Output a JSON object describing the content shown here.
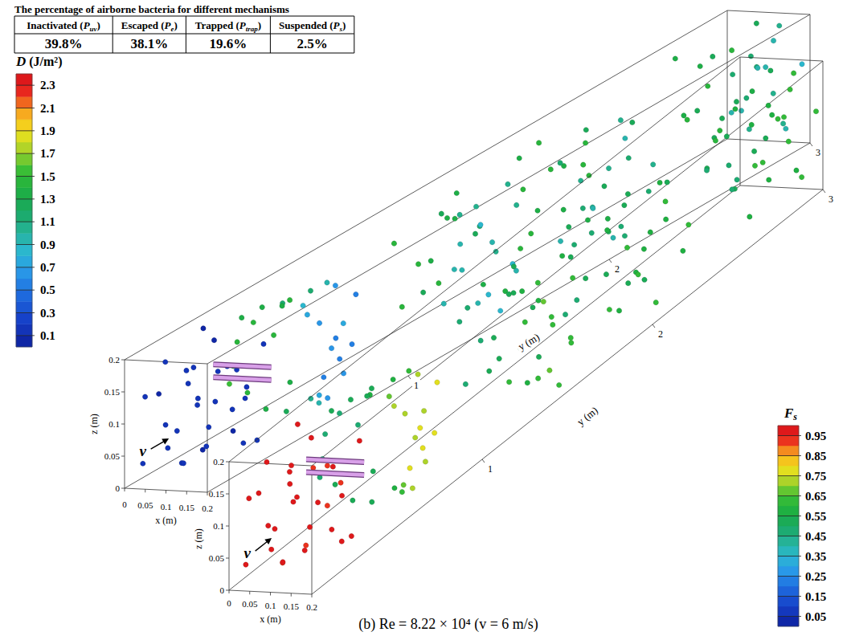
{
  "title": "The percentage of airborne bacteria for different mechanisms",
  "table": {
    "columns": [
      {
        "before": "Inactivated (",
        "symbol": "P",
        "subscript": "uv",
        "after": ")"
      },
      {
        "before": "Escaped (",
        "symbol": "P",
        "subscript": "e",
        "after": ")"
      },
      {
        "before": "Trapped (",
        "symbol": "P",
        "subscript": "trap",
        "after": ")"
      },
      {
        "before": "Suspended (",
        "symbol": "P",
        "subscript": "s",
        "after": ")"
      }
    ],
    "values": [
      39.8,
      38.1,
      19.6,
      2.5
    ],
    "value_labels": [
      "39.8%",
      "38.1%",
      "19.6%",
      "2.5%"
    ]
  },
  "caption": "(b) Re = 8.22 × 10⁴ (v = 6 m/s)",
  "lamps": [
    {
      "x": [
        0.03,
        0.17
      ],
      "y": 0.38,
      "z": 0.125
    },
    {
      "x": [
        0.03,
        0.17
      ],
      "y": 0.38,
      "z": 0.105
    }
  ],
  "particles": {
    "x": [
      0.02,
      0.08,
      0.15,
      0.19,
      0.04,
      0.11,
      0.17,
      0.01,
      0.06,
      0.13,
      0.18,
      0.03,
      0.09,
      0.14,
      0.07,
      0.12,
      0.16,
      0.05,
      0.1,
      0.19,
      0.02,
      0.08,
      0.15,
      0.11,
      0.04,
      0.17,
      0.13,
      0.06,
      0.2,
      0.09,
      0.02,
      0.03,
      0.02,
      0.05,
      0.06,
      0.04,
      0.08,
      0.09,
      0.11,
      0.12,
      0.1,
      0.14,
      0.15,
      0.17,
      0.18,
      0.19,
      0.17,
      0.19,
      0.16,
      0.18,
      0.2,
      0.15,
      0.03,
      0.01,
      0.07,
      0.06,
      0.13,
      0.13,
      0.19,
      0.17,
      0.04,
      0.16,
      0.18,
      0.16,
      0.19,
      0.14,
      0.17,
      0.2,
      0.15,
      0.12,
      0.18,
      0.13,
      0.1,
      0.08,
      0.06,
      0.03,
      0.05,
      0.09,
      0.02,
      0.11,
      0.16,
      0.19,
      0.14,
      0.17,
      0.07,
      0.12,
      0.04,
      0.2,
      0.15,
      0.1,
      0.18,
      0.13,
      0.18,
      0.16,
      0.19,
      0.14,
      0.12,
      0.1,
      0.07,
      0.05,
      0.02,
      0.09,
      0.15,
      0.17,
      0.2,
      0.13,
      0.04,
      0.11,
      0.08,
      0.18,
      0.03,
      0.16,
      0.06,
      0.19,
      0.12,
      0.14,
      0.01,
      0.1,
      0.17,
      0.08,
      0.15,
      0.05,
      0.02,
      0.05,
      0.09,
      0.13,
      0.17,
      0.19,
      0.15,
      0.11,
      0.07,
      0.03,
      0.18,
      0.12,
      0.06,
      0.16,
      0.2,
      0.1,
      0.04,
      0.14,
      0.08,
      0.18,
      0.01,
      0.13,
      0.17,
      0.09,
      0.05,
      0.15,
      0.11,
      0.19
    ],
    "y": [
      0.05,
      0.12,
      0.08,
      0.2,
      0.28,
      0.31,
      0.25,
      0.15,
      0.22,
      0.04,
      0.14,
      0.33,
      0.18,
      0.27,
      0.06,
      0.16,
      0.33,
      0.1,
      0.24,
      0.06,
      0.22,
      0.3,
      0.11,
      0.09,
      0.02,
      0.19,
      0.34,
      0.17,
      0.28,
      0.03,
      0.5,
      0.55,
      0.6,
      0.48,
      0.58,
      0.66,
      0.52,
      0.62,
      0.56,
      0.68,
      0.72,
      0.6,
      0.66,
      0.62,
      0.7,
      0.66,
      0.74,
      0.76,
      0.72,
      0.64,
      0.72,
      0.78,
      0.46,
      0.54,
      0.64,
      0.7,
      0.74,
      0.7,
      0.6,
      0.68,
      0.74,
      0.58,
      1.3,
      1.35,
      1.42,
      1.38,
      1.48,
      1.52,
      1.45,
      1.33,
      1.58,
      1.5,
      1.4,
      1.36,
      1.44,
      1.28,
      1.55,
      1.6,
      1.34,
      1.26,
      1.62,
      1.25,
      1.56,
      1.4,
      1.5,
      1.46,
      1.38,
      1.36,
      1.28,
      1.54,
      1.5,
      1.64,
      1.9,
      2.0,
      2.1,
      1.95,
      2.05,
      1.85,
      2.15,
      1.92,
      2.08,
      2.22,
      2.2,
      1.82,
      2.02,
      2.12,
      1.98,
      1.96,
      2.02,
      2.26,
      2.25,
      2.14,
      1.86,
      1.94,
      2.28,
      1.88,
      1.95,
      2.1,
      2.06,
      1.8,
      2.3,
      2.18,
      2.7,
      2.8,
      2.75,
      2.85,
      2.72,
      2.9,
      2.95,
      2.92,
      2.98,
      2.88,
      2.82,
      2.68,
      2.66,
      2.78,
      2.96,
      2.84,
      2.94,
      2.99,
      2.7,
      2.65,
      2.78,
      2.74,
      2.88,
      2.96,
      2.86,
      2.92,
      2.8,
      2.76
    ],
    "z": [
      0.03,
      0.02,
      0.05,
      0.04,
      0.08,
      0.07,
      0.1,
      0.12,
      0.15,
      0.18,
      0.17,
      0.19,
      0.11,
      0.14,
      0.09,
      0.04,
      0.02,
      0.18,
      0.19,
      0.13,
      0.05,
      0.13,
      0.08,
      0.15,
      0.14,
      0.06,
      0.1,
      0.01,
      0.18,
      0.06,
      0.1,
      0.05,
      0.15,
      0.18,
      0.02,
      0.12,
      0.19,
      0.01,
      0.19,
      0.02,
      0.18,
      0.18,
      0.03,
      0.15,
      0.08,
      0.12,
      0.05,
      0.17,
      0.19,
      0.03,
      0.1,
      0.12,
      0.08,
      0.13,
      0.17,
      0.04,
      0.19,
      0.01,
      0.07,
      0.1,
      0.16,
      0.17,
      0.15,
      0.1,
      0.05,
      0.18,
      0.12,
      0.08,
      0.03,
      0.19,
      0.16,
      0.14,
      0.17,
      0.11,
      0.06,
      0.15,
      0.18,
      0.03,
      0.04,
      0.08,
      0.05,
      0.12,
      0.09,
      0.19,
      0.15,
      0.02,
      0.1,
      0.17,
      0.06,
      0.12,
      0.01,
      0.18,
      0.14,
      0.08,
      0.17,
      0.03,
      0.19,
      0.1,
      0.15,
      0.05,
      0.12,
      0.02,
      0.12,
      0.06,
      0.03,
      0.09,
      0.18,
      0.15,
      0.07,
      0.1,
      0.08,
      0.19,
      0.13,
      0.09,
      0.16,
      0.17,
      0.02,
      0.04,
      0.13,
      0.19,
      0.05,
      0.11,
      0.18,
      0.12,
      0.05,
      0.16,
      0.1,
      0.04,
      0.19,
      0.13,
      0.08,
      0.02,
      0.15,
      0.19,
      0.1,
      0.06,
      0.13,
      0.09,
      0.15,
      0.03,
      0.17,
      0.11,
      0.07,
      0.01,
      0.18,
      0.19,
      0.04,
      0.09,
      0.14,
      0.16
    ]
  },
  "chart_data": [
    {
      "type": "scatter3d",
      "x_label": "x (m)",
      "y_label": "y (m)",
      "z_label": "z (m)",
      "xlim": [
        0,
        0.2
      ],
      "xticks": [
        0,
        0.05,
        0.1,
        0.15,
        0.2
      ],
      "ylim": [
        0,
        3
      ],
      "yticks": [
        1,
        2,
        3
      ],
      "zlim": [
        0,
        0.2
      ],
      "zticks": [
        0,
        0.05,
        0.1,
        0.15,
        0.2
      ],
      "flow_label": "v",
      "color_title": {
        "symbol": "D",
        "after": " (J/m²)"
      },
      "color_range": [
        0,
        2.4
      ],
      "color_ticks": [
        0.1,
        0.3,
        0.5,
        0.7,
        0.9,
        1.1,
        1.3,
        1.5,
        1.7,
        1.9,
        2.1,
        2.3
      ],
      "values": [
        0.1,
        0.12,
        0.09,
        0.11,
        0.1,
        0.13,
        0.1,
        0.08,
        0.11,
        0.1,
        0.12,
        0.09,
        0.1,
        0.11,
        0.1,
        0.12,
        0.1,
        0.11,
        0.09,
        0.1,
        0.11,
        0.12,
        0.1,
        0.11,
        0.1,
        0.09,
        0.13,
        0.1,
        0.11,
        0.1,
        1.45,
        1.4,
        1.48,
        1.35,
        1.38,
        1.42,
        1.3,
        1.25,
        1.1,
        1.05,
        1.15,
        0.85,
        0.75,
        0.62,
        0.55,
        0.58,
        0.65,
        0.52,
        0.68,
        0.6,
        0.5,
        0.7,
        1.5,
        1.46,
        1.33,
        1.36,
        0.95,
        0.9,
        0.56,
        0.6,
        1.4,
        0.72,
        0.95,
        0.9,
        0.85,
        1.05,
        0.92,
        0.88,
        0.98,
        1.2,
        1.0,
        1.1,
        1.3,
        1.35,
        1.4,
        1.45,
        1.38,
        1.32,
        1.42,
        1.25,
        0.95,
        0.9,
        1.02,
        1.0,
        1.36,
        1.15,
        1.44,
        0.86,
        0.94,
        1.22,
        0.88,
        1.08,
        1.0,
        1.05,
        0.95,
        1.15,
        1.25,
        1.35,
        1.4,
        1.45,
        1.42,
        1.3,
        1.1,
        0.98,
        0.92,
        1.2,
        1.44,
        1.32,
        1.38,
        1.02,
        1.46,
        1.08,
        1.4,
        0.96,
        1.22,
        1.12,
        1.48,
        1.34,
        1.04,
        1.36,
        1.14,
        1.43,
        1.3,
        1.4,
        1.25,
        1.1,
        0.95,
        0.9,
        1.0,
        1.15,
        1.35,
        1.45,
        0.92,
        1.2,
        1.38,
        1.05,
        0.88,
        1.22,
        1.42,
        1.08,
        1.32,
        0.94,
        1.48,
        1.12,
        0.98,
        1.28,
        1.44,
        1.02,
        1.18,
        0.9
      ]
    },
    {
      "type": "scatter3d",
      "x_label": "x (m)",
      "y_label": "y (m)",
      "z_label": "z (m)",
      "xlim": [
        0,
        0.2
      ],
      "xticks": [
        0,
        0.05,
        0.1,
        0.15,
        0.2
      ],
      "ylim": [
        0,
        3
      ],
      "yticks": [
        1,
        2,
        3
      ],
      "zlim": [
        0,
        0.2
      ],
      "zticks": [
        0,
        0.05,
        0.1,
        0.15,
        0.2
      ],
      "flow_label": "v",
      "color_title": {
        "symbol": "F",
        "subscript": "s"
      },
      "color_range": [
        0,
        1
      ],
      "color_ticks": [
        0.05,
        0.15,
        0.25,
        0.35,
        0.45,
        0.55,
        0.65,
        0.75,
        0.85,
        0.95
      ],
      "values": [
        0.95,
        0.94,
        0.96,
        0.95,
        0.95,
        0.94,
        0.95,
        0.96,
        0.95,
        0.95,
        0.94,
        0.96,
        0.95,
        0.95,
        0.95,
        0.94,
        0.95,
        0.95,
        0.96,
        0.95,
        0.95,
        0.94,
        0.95,
        0.95,
        0.95,
        0.96,
        0.94,
        0.95,
        0.95,
        0.95,
        0.48,
        0.5,
        0.48,
        0.51,
        0.5,
        0.49,
        0.52,
        0.54,
        0.58,
        0.59,
        0.56,
        0.65,
        0.69,
        0.73,
        0.76,
        0.75,
        0.72,
        0.77,
        0.71,
        0.74,
        0.78,
        0.7,
        0.47,
        0.48,
        0.51,
        0.51,
        0.62,
        0.64,
        0.76,
        0.74,
        0.5,
        0.7,
        0.62,
        0.64,
        0.65,
        0.59,
        0.63,
        0.64,
        0.61,
        0.55,
        0.61,
        0.58,
        0.52,
        0.51,
        0.5,
        0.48,
        0.5,
        0.52,
        0.49,
        0.54,
        0.62,
        0.64,
        0.6,
        0.61,
        0.51,
        0.56,
        0.49,
        0.65,
        0.63,
        0.54,
        0.64,
        0.58,
        0.61,
        0.59,
        0.62,
        0.56,
        0.54,
        0.51,
        0.5,
        0.48,
        0.49,
        0.52,
        0.58,
        0.61,
        0.63,
        0.55,
        0.49,
        0.52,
        0.5,
        0.6,
        0.48,
        0.58,
        0.5,
        0.62,
        0.54,
        0.57,
        0.48,
        0.51,
        0.59,
        0.51,
        0.57,
        0.49,
        0.52,
        0.5,
        0.54,
        0.58,
        0.62,
        0.64,
        0.61,
        0.56,
        0.51,
        0.48,
        0.63,
        0.55,
        0.5,
        0.59,
        0.64,
        0.54,
        0.49,
        0.58,
        0.52,
        0.63,
        0.48,
        0.57,
        0.61,
        0.53,
        0.49,
        0.6,
        0.55,
        0.64
      ]
    }
  ]
}
